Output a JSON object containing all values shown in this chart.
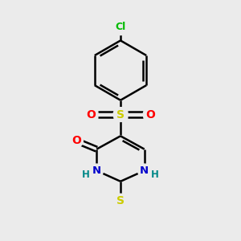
{
  "bg_color": "#ebebeb",
  "bond_color": "#000000",
  "bond_width": 1.8,
  "atom_colors": {
    "Cl": "#00bb00",
    "O": "#ff0000",
    "S_sulfonyl": "#cccc00",
    "S_thioxo": "#cccc00",
    "N": "#0000cc",
    "H": "#008888",
    "C": "#000000"
  },
  "figsize": [
    3.0,
    3.0
  ],
  "dpi": 100
}
